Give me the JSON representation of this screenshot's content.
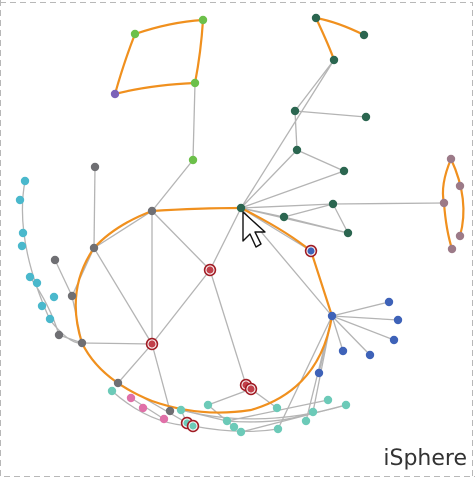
{
  "brand": {
    "label": "iSphere"
  },
  "colors": {
    "edge": "#b4b4b4",
    "highlight_edge": "#f0901e",
    "frame": "#b8b8b8",
    "node_outline_highlight": "#a01c24",
    "green": "#6cc04a",
    "dark_green": "#2b6650",
    "purple": "#7b62b8",
    "gray": "#6f6f73",
    "cyan": "#4ab8cc",
    "teal": "#6ccab8",
    "pink": "#e070a8",
    "blue": "#3e62b8",
    "mauve": "#9c7a88",
    "red_core": "#c2404a"
  },
  "cursor": {
    "icon": "arrow-cursor-icon"
  }
}
